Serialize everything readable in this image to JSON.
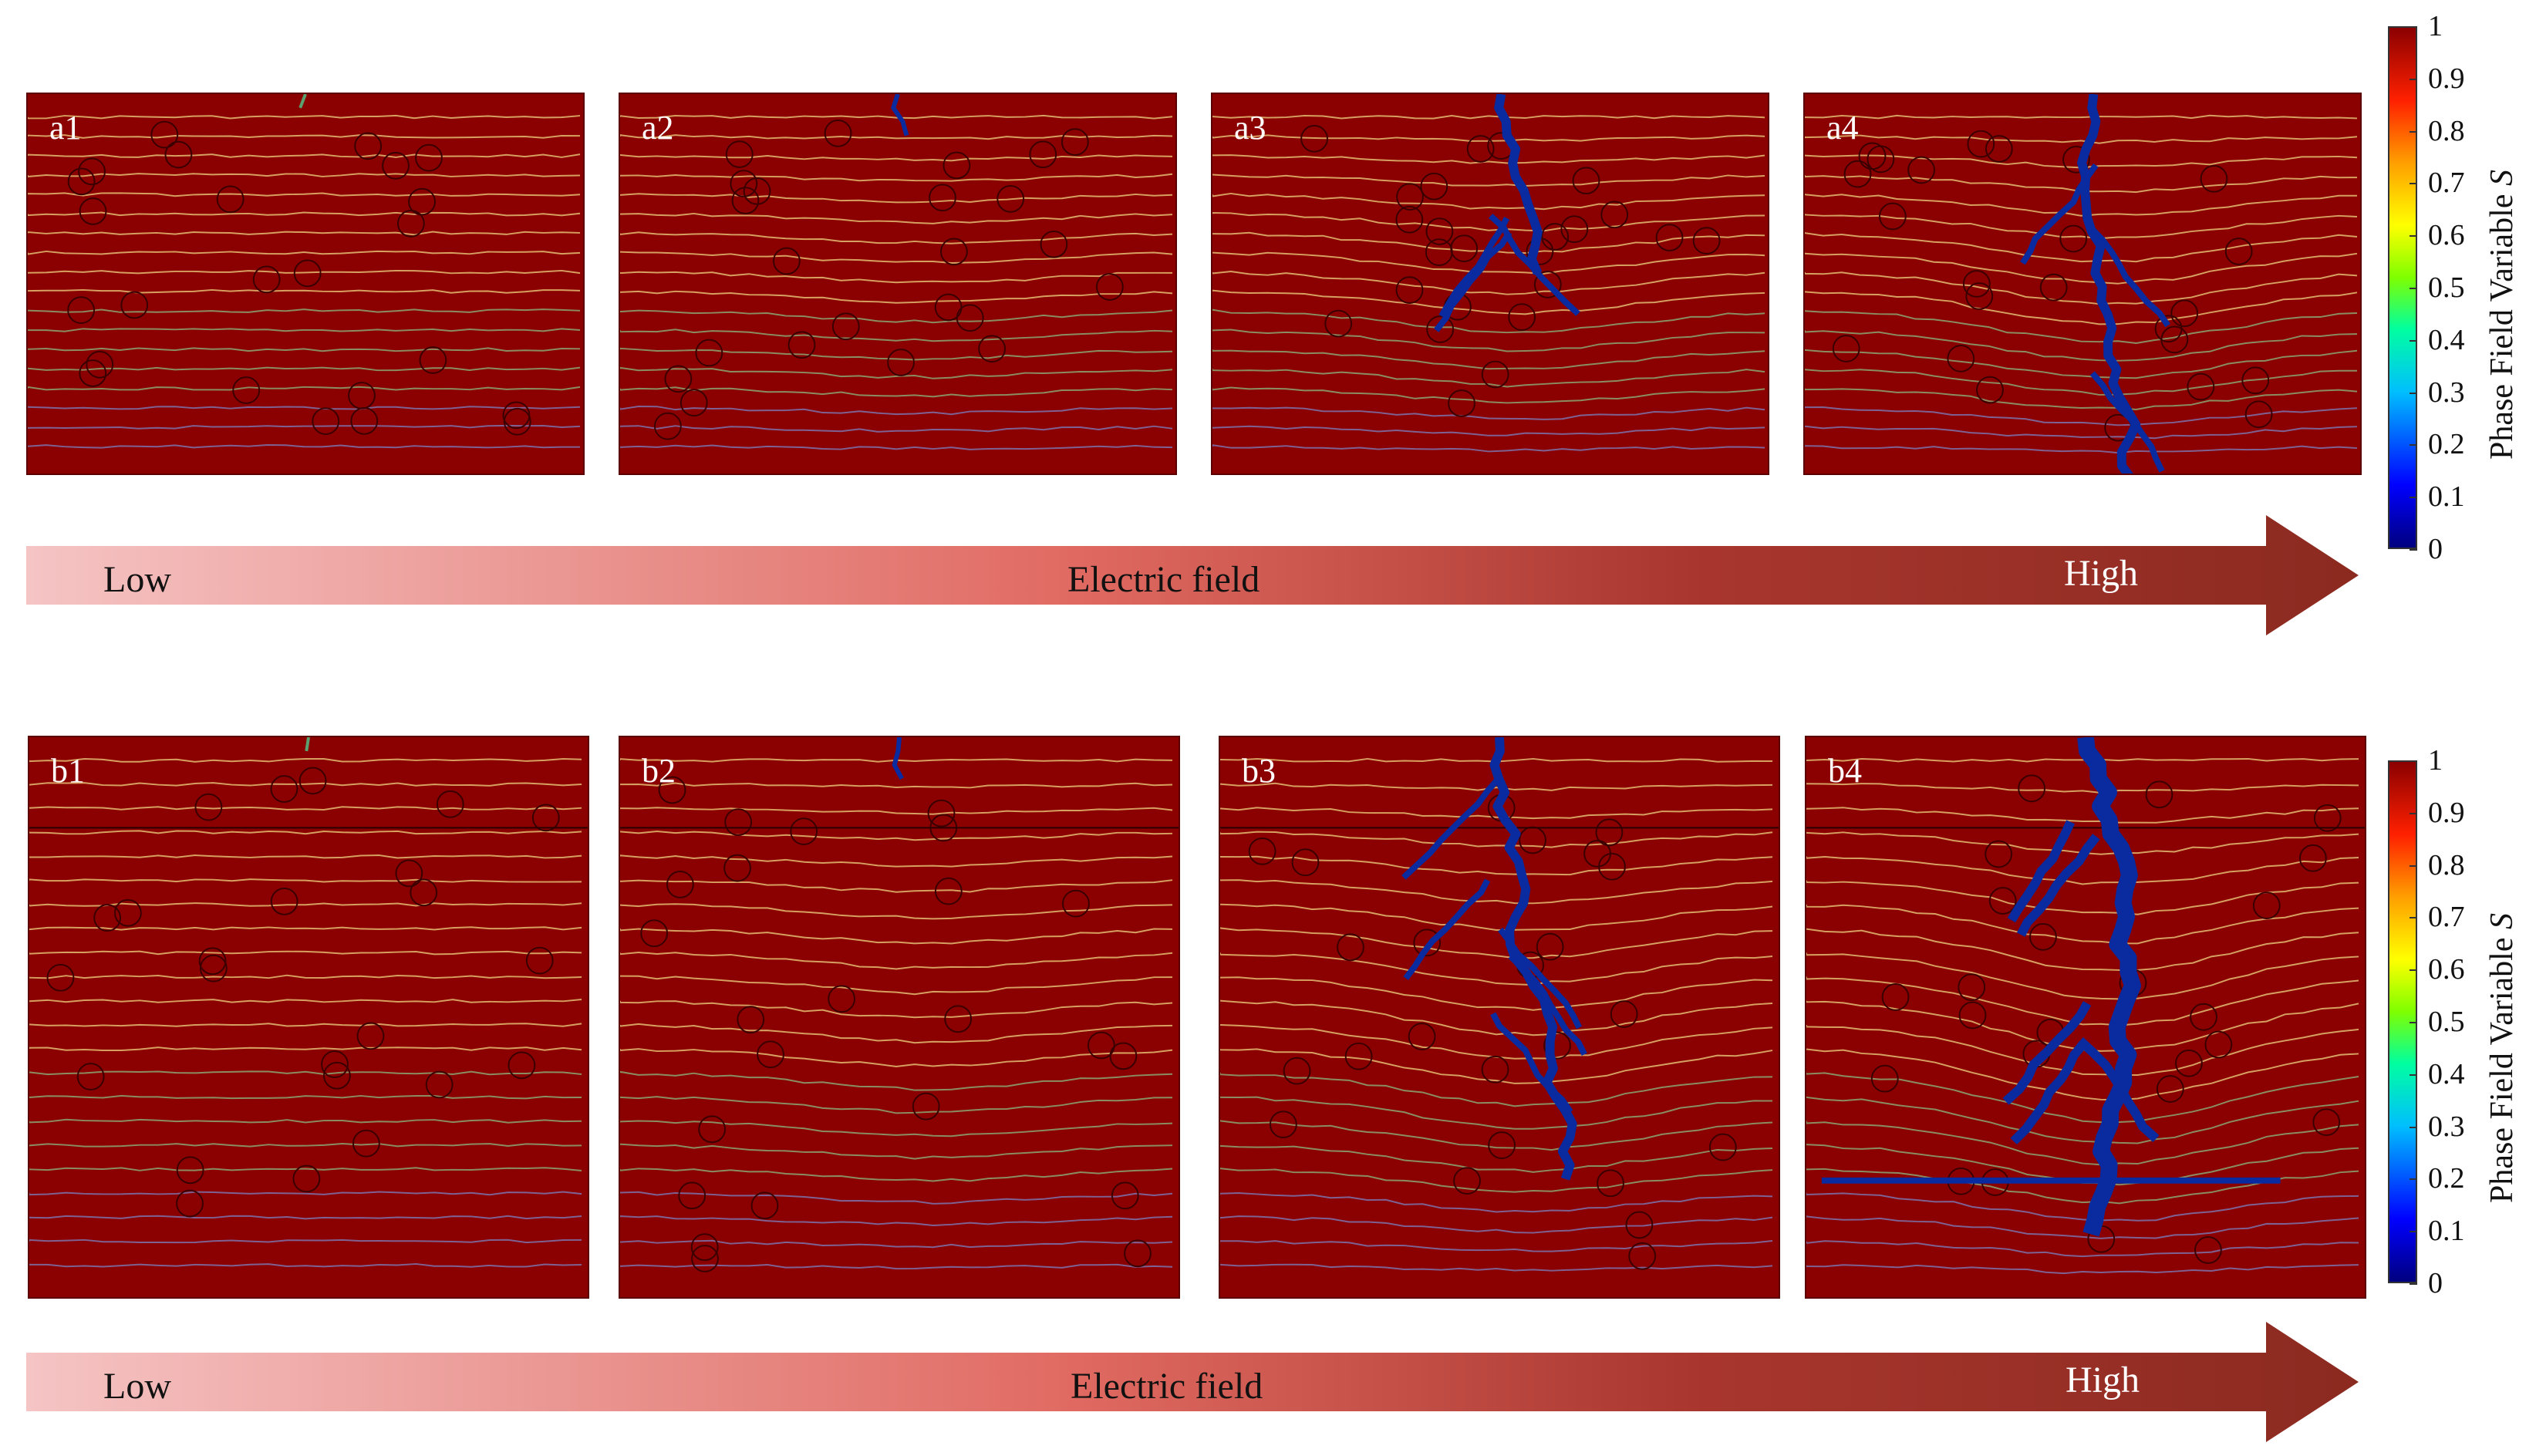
{
  "rows": [
    {
      "panels": [
        "a1",
        "a2",
        "a3",
        "a4"
      ],
      "arrow": {
        "low": "Low",
        "middle": "Electric  field",
        "high": "High"
      }
    },
    {
      "panels": [
        "b1",
        "b2",
        "b3",
        "b4"
      ],
      "arrow": {
        "low": "Low",
        "middle": "Electric  field",
        "high": "High"
      }
    }
  ],
  "colorbar": {
    "title": "Phase  Field  Variable",
    "title_symbol": "S",
    "ticks": [
      "1",
      "0.9",
      "0.8",
      "0.7",
      "0.6",
      "0.5",
      "0.4",
      "0.3",
      "0.2",
      "0.1",
      "0"
    ]
  },
  "colors": {
    "background": "#8b0000",
    "crack": "#0a2aa0",
    "arrow_start": "#f5c4c4",
    "arrow_mid": "#e06a62",
    "arrow_end": "#8b2a20"
  }
}
